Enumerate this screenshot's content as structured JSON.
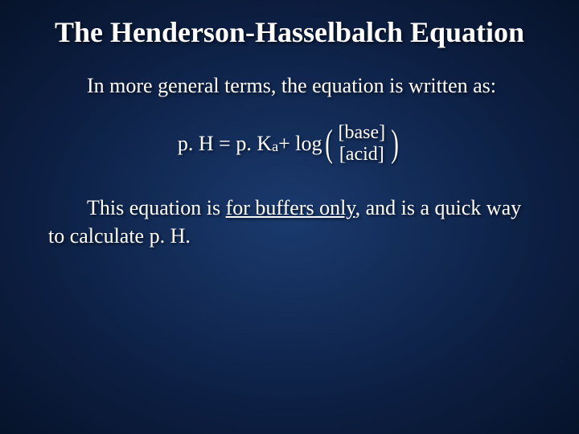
{
  "slide": {
    "background_center": "#1a3a6e",
    "background_mid": "#0d2044",
    "background_edge": "#06132a",
    "text_color": "#ffffff",
    "title_fontsize": 36,
    "body_fontsize": 26,
    "font_family": "Times New Roman"
  },
  "title": "The Henderson-Hasselbalch Equation",
  "para1_prefix": "In more general terms, the equation is written as:",
  "equation": {
    "lhs_part1": "p. H = p. K",
    "lhs_sub": "a",
    "lhs_part2": " + log",
    "numerator": "[base]",
    "denominator": "[acid]",
    "paren_left": "(",
    "paren_right": ")"
  },
  "para2_prefix": "This equation is ",
  "para2_underlined": "for buffers only",
  "para2_suffix": ", and is a quick way to calculate p. H."
}
